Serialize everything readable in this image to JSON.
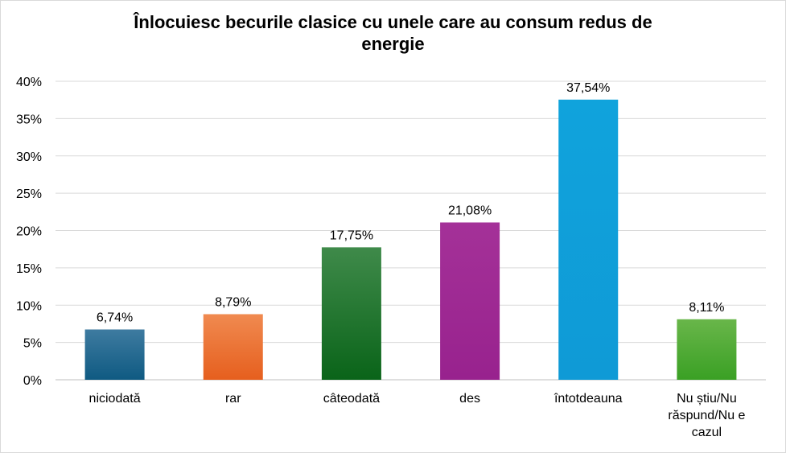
{
  "chart_data": {
    "type": "bar",
    "title_lines": [
      "Înlocuiesc becurile clasice cu unele care au consum redus de",
      "energie"
    ],
    "categories": [
      [
        "niciodată"
      ],
      [
        "rar"
      ],
      [
        "câteodată"
      ],
      [
        "des"
      ],
      [
        "întotdeauna"
      ],
      [
        "Nu știu/Nu",
        "răspund/Nu e",
        "cazul"
      ]
    ],
    "values": [
      6.74,
      8.79,
      17.75,
      21.08,
      37.54,
      8.11
    ],
    "value_labels": [
      "6,74%",
      "8,79%",
      "17,75%",
      "21,08%",
      "37,54%",
      "8,11%"
    ],
    "ylim": [
      0,
      40
    ],
    "yticks": [
      "0%",
      "5%",
      "10%",
      "15%",
      "20%",
      "25%",
      "30%",
      "35%",
      "40%"
    ],
    "grid": true,
    "legend": "none",
    "colors": [
      [
        "#3e7ba0",
        "#0f5a82"
      ],
      [
        "#f08a50",
        "#e65f1e"
      ],
      [
        "#3f8a4a",
        "#0a6419"
      ],
      [
        "#a43198",
        "#98228e"
      ],
      [
        "#10a3dc",
        "#0f9ad6"
      ],
      [
        "#69b64a",
        "#3aa024"
      ]
    ]
  }
}
